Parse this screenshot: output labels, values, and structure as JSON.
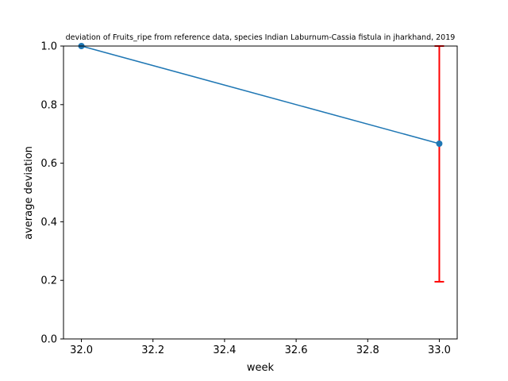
{
  "chart_data": {
    "type": "line",
    "title": "deviation of Fruits_ripe from reference data, species Indian Laburnum-Cassia fistula in jharkhand, 2019",
    "xlabel": "week",
    "ylabel": "average deviation",
    "xlim": [
      31.95,
      33.05
    ],
    "ylim": [
      0.0,
      1.0
    ],
    "xticks": [
      "32.0",
      "32.2",
      "32.4",
      "32.6",
      "32.8",
      "33.0"
    ],
    "yticks": [
      "0.0",
      "0.2",
      "0.4",
      "0.6",
      "0.8",
      "1.0"
    ],
    "grid": false,
    "series": [
      {
        "x": [
          32.0,
          33.0
        ],
        "y": [
          1.0,
          0.6667
        ],
        "error_lower": [
          null,
          0.1953
        ],
        "error_upper": [
          null,
          1.0
        ],
        "color": "#1f77b4",
        "error_color": "#ff0000"
      }
    ]
  }
}
